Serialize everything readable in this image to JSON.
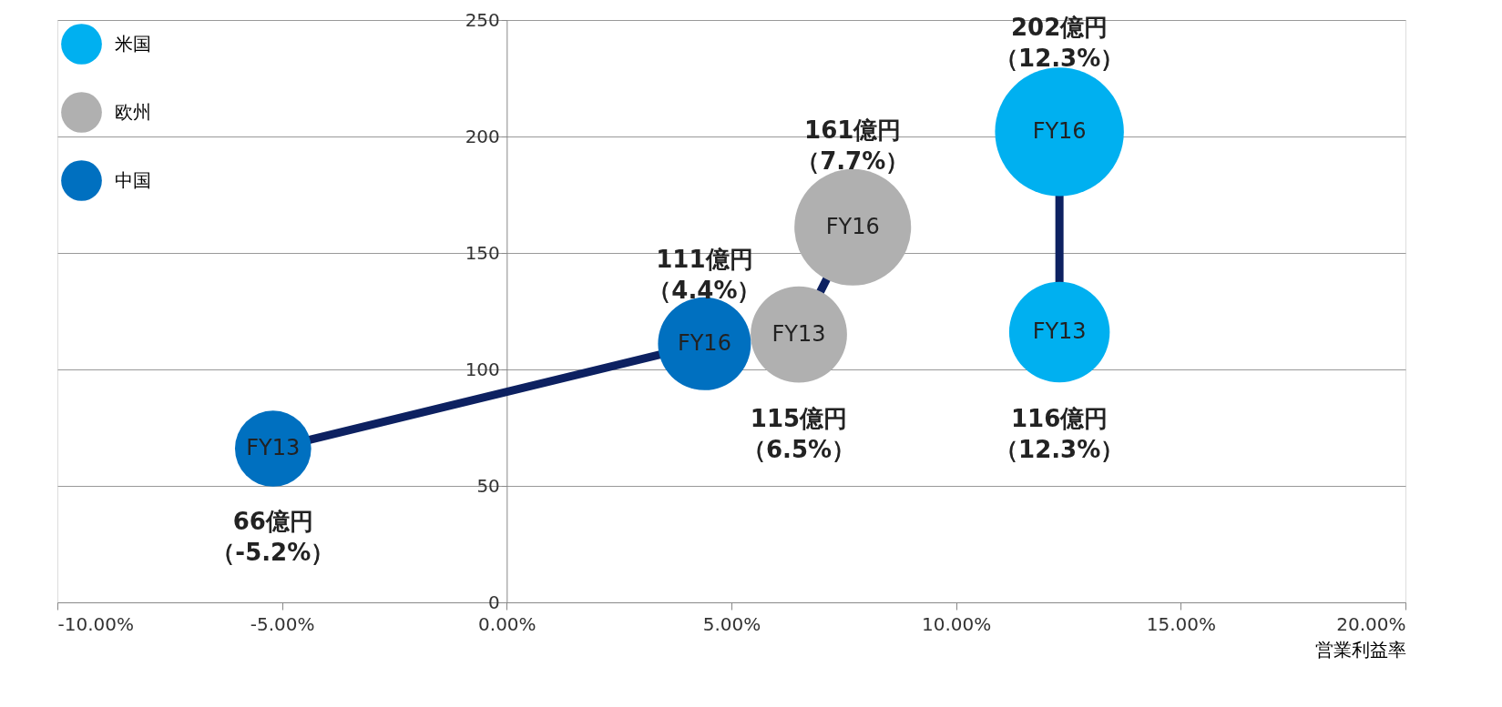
{
  "chart_data": {
    "type": "bubble",
    "xlabel": "営業利益率",
    "xlim": [
      -10,
      20
    ],
    "xticks": [
      {
        "value": -10,
        "label": "-10.00%"
      },
      {
        "value": -5,
        "label": "-5.00%"
      },
      {
        "value": 0,
        "label": "0.00%"
      },
      {
        "value": 5,
        "label": "5.00%"
      },
      {
        "value": 10,
        "label": "10.00%"
      },
      {
        "value": 15,
        "label": "15.00%"
      },
      {
        "value": 20,
        "label": "20.00%"
      }
    ],
    "ylim": [
      0,
      250
    ],
    "yticks": [
      0,
      50,
      100,
      150,
      200,
      250
    ],
    "grid": "y",
    "legend": "top left",
    "series": [
      {
        "name": "米国",
        "color": "#00b0f0",
        "x": [
          12.3,
          12.3
        ],
        "values": [
          116,
          202
        ],
        "sizes": [
          0.61,
          1
        ],
        "value_labels": [
          "116億円（12.3%）",
          "202億円（12.3%）"
        ]
      },
      {
        "name": "欧州",
        "color": "#b0b0b0",
        "x": [
          6.5,
          7.7
        ],
        "values": [
          115,
          161
        ],
        "sizes": [
          0.56,
          0.82
        ],
        "value_labels": [
          "115億円（6.5%）",
          "161億円（7.7%）"
        ]
      },
      {
        "name": "中国",
        "color": "#0070c0",
        "x": [
          -5.2,
          4.4
        ],
        "values": [
          66,
          111
        ],
        "sizes": [
          0.35,
          0.52
        ],
        "value_labels": [
          "66億円（-5.2%）",
          "111億円（4.4%）"
        ]
      }
    ],
    "annotations": [
      {
        "text": "FY13",
        "x": 12.3,
        "y": 116
      },
      {
        "text": "FY16",
        "x": 12.3,
        "y": 202
      },
      {
        "text": "FY13",
        "x": 6.5,
        "y": 115
      },
      {
        "text": "FY16",
        "x": 7.7,
        "y": 161
      },
      {
        "text": "FY13",
        "x": -5.2,
        "y": 66
      },
      {
        "text": "FY16",
        "x": 4.4,
        "y": 111
      }
    ]
  }
}
